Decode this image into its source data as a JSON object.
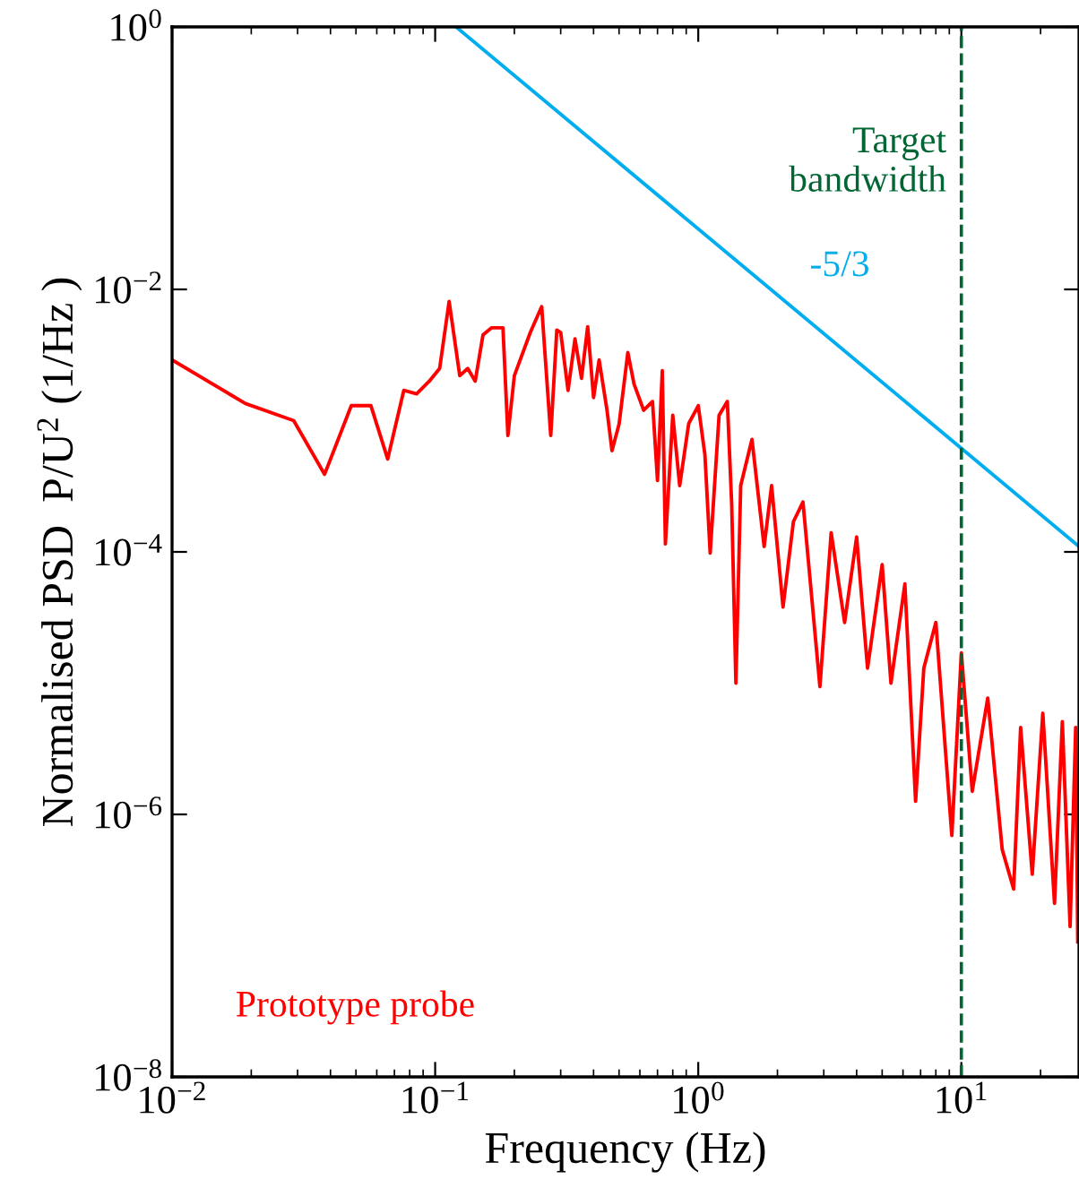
{
  "chart_data": {
    "type": "line",
    "xlabel": "Frequency (Hz)",
    "ylabel": "Normalised PSD  P/U$^{2}$ (1/Hz )",
    "log": "xy",
    "xlim": [
      0.01,
      28
    ],
    "ylim": [
      1e-08,
      1
    ],
    "xticks": [
      {
        "value": 0.01,
        "label": "10$^{−2}$"
      },
      {
        "value": 0.1,
        "label": "10$^{−1}$"
      },
      {
        "value": 1,
        "label": "10$^{0}$"
      },
      {
        "value": 10,
        "label": "10$^{1}$"
      }
    ],
    "yticks": [
      {
        "value": 1e-08,
        "label": "10$^{−8}$"
      },
      {
        "value": 1e-06,
        "label": "10$^{−6}$"
      },
      {
        "value": 0.0001,
        "label": "10$^{−4}$"
      },
      {
        "value": 0.01,
        "label": "10$^{−2}$"
      },
      {
        "value": 1,
        "label": "10$^{0}$"
      }
    ],
    "grid": false,
    "legend": false,
    "line_style": "solid",
    "marker": "none",
    "ref_lines": [
      {
        "axis": "x",
        "value": 10,
        "label": "Target\nbandwidth",
        "color": "#006633",
        "line_style": "dashed"
      }
    ],
    "series": [
      {
        "name": "Prototype probe",
        "color": "#ff0000",
        "x": [
          0.01,
          0.019,
          0.029,
          0.038,
          0.048,
          0.057,
          0.066,
          0.076,
          0.085,
          0.095,
          0.104,
          0.113,
          0.124,
          0.133,
          0.142,
          0.152,
          0.164,
          0.181,
          0.189,
          0.2,
          0.23,
          0.254,
          0.275,
          0.29,
          0.3,
          0.32,
          0.34,
          0.36,
          0.38,
          0.4,
          0.42,
          0.45,
          0.47,
          0.5,
          0.54,
          0.57,
          0.62,
          0.67,
          0.7,
          0.73,
          0.75,
          0.8,
          0.85,
          0.92,
          1.0,
          1.06,
          1.11,
          1.2,
          1.29,
          1.34,
          1.39,
          1.45,
          1.6,
          1.78,
          1.9,
          2.1,
          2.3,
          2.5,
          2.9,
          3.2,
          3.6,
          4.0,
          4.4,
          5.0,
          5.4,
          6.1,
          6.7,
          7.2,
          8.0,
          9.2,
          10,
          11,
          12.6,
          14.3,
          15.8,
          16.8,
          18.6,
          20.4,
          22.6,
          24.2,
          25.9,
          27.2,
          27.7
        ],
        "values": [
          0.0029,
          0.00135,
          0.001,
          0.00039,
          0.0013,
          0.0013,
          0.00051,
          0.0017,
          0.0016,
          0.002,
          0.0025,
          0.0081,
          0.0022,
          0.0025,
          0.002,
          0.0045,
          0.0051,
          0.0051,
          0.00077,
          0.0022,
          0.0047,
          0.0074,
          0.00077,
          0.0049,
          0.0047,
          0.0017,
          0.0042,
          0.0021,
          0.0052,
          0.0015,
          0.0029,
          0.0012,
          0.00059,
          0.00094,
          0.0033,
          0.0019,
          0.0012,
          0.0014,
          0.00035,
          0.0024,
          0.000115,
          0.0011,
          0.00032,
          0.00095,
          0.0013,
          0.00055,
          9.8e-05,
          0.0011,
          0.0014,
          0.00023,
          1e-05,
          0.00032,
          0.00072,
          0.00011,
          0.00032,
          3.8e-05,
          0.00017,
          0.00024,
          9.4e-06,
          0.00014,
          2.9e-05,
          0.00013,
          1.3e-05,
          8e-05,
          1e-05,
          5.7e-05,
          1.26e-06,
          1.3e-05,
          2.9e-05,
          6.9e-07,
          1.7e-05,
          1.5e-06,
          7.7e-06,
          5.4e-07,
          2.7e-07,
          4.6e-06,
          3.5e-07,
          5.9e-06,
          2.1e-07,
          5.1e-06,
          1.4e-07,
          4.6e-06,
          1.07e-07
        ]
      },
      {
        "name": "-5/3",
        "color": "#00aeef",
        "x": [
          0.12,
          28
        ],
        "values": [
          1,
          0.00011
        ]
      }
    ]
  }
}
